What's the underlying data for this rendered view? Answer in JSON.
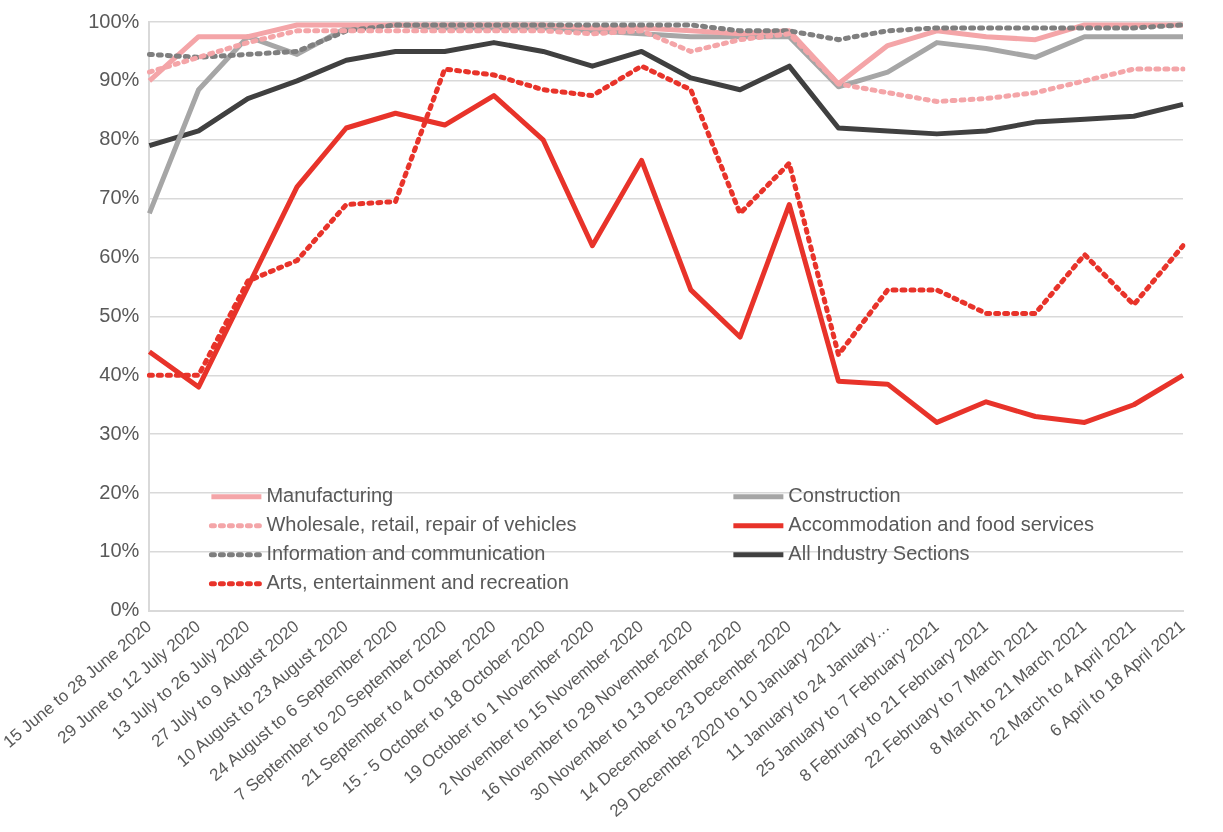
{
  "chart_data": {
    "type": "line",
    "categories": [
      "15 June to 28 June 2020",
      "29 June to 12 July 2020",
      "13 July to 26 July 2020",
      "27 July to 9 August 2020",
      "10 August to 23 August 2020",
      "24 August to 6 September 2020",
      "7 September to 20 September 2020",
      "21 September to 4 October 2020",
      "15 - 5 October to 18 October 2020",
      "19 October to 1 November 2020",
      "2 November to 15 November 2020",
      "16 November to 29 November 2020",
      "30 November to 13 December 2020",
      "14 December to 23 December 2020",
      "29 December 2020 to 10 January 2021",
      "11 January to 24 January…",
      "25 January to 7 February 2021",
      "8 February to 21 February 2021",
      "22 February to 7 March 2021",
      "8 March to 21 March 2021",
      "22 March to 4 April 2021",
      "6 April to 18 April 2021"
    ],
    "series": [
      {
        "name": "Manufacturing",
        "color": "#f4a5a8",
        "line_style": "solid",
        "values": [
          90,
          97.5,
          97.5,
          99.5,
          99.5,
          99.5,
          99.5,
          99.5,
          99.5,
          99,
          99,
          98.5,
          98,
          98.5,
          89.5,
          96,
          98.5,
          97.5,
          97,
          99.5,
          99.5,
          99.5
        ]
      },
      {
        "name": "Construction",
        "color": "#a6a6a6",
        "line_style": "solid",
        "values": [
          67.5,
          88.5,
          97.5,
          94.5,
          99,
          99.5,
          99,
          99,
          99,
          98.5,
          98,
          97.5,
          97.5,
          97.5,
          89,
          91.5,
          96.5,
          95.5,
          94,
          97.5,
          97.5,
          97.5
        ]
      },
      {
        "name": "Wholesale, retail, repair of vehicles",
        "color": "#f4a5a8",
        "line_style": "dotted",
        "values": [
          91.5,
          94,
          96.5,
          98.5,
          98.5,
          98.5,
          98.5,
          98.5,
          98.5,
          98,
          98.5,
          95,
          97,
          98,
          89.5,
          88,
          86.5,
          87,
          88,
          90,
          92,
          92
        ]
      },
      {
        "name": "Accommodation and food services",
        "color": "#e8332a",
        "line_style": "solid",
        "values": [
          44,
          38,
          55,
          72,
          82,
          84.5,
          82.5,
          87.5,
          80,
          62,
          76.5,
          54.5,
          46.5,
          69,
          39,
          38.5,
          32,
          35.5,
          33,
          32,
          35,
          40
        ]
      },
      {
        "name": "Information and communication",
        "color": "#7f7f7f",
        "line_style": "dotted",
        "values": [
          94.5,
          94,
          94.5,
          95,
          98.5,
          99.5,
          99.5,
          99.5,
          99.5,
          99.5,
          99.5,
          99.5,
          98.5,
          98.5,
          97,
          98.5,
          99,
          99,
          99,
          99,
          99,
          99.5
        ]
      },
      {
        "name": "All Industry Sections",
        "color": "#404040",
        "line_style": "solid",
        "values": [
          79,
          81.5,
          87,
          90,
          93.5,
          95,
          95,
          96.5,
          95,
          92.5,
          95,
          90.5,
          88.5,
          92.5,
          82,
          81.5,
          81,
          81.5,
          83,
          83.5,
          84,
          86
        ]
      },
      {
        "name": "Arts, entertainment and recreation",
        "color": "#e8332a",
        "line_style": "dotted",
        "values": [
          40,
          40,
          56,
          59.5,
          69,
          69.5,
          92,
          91,
          88.5,
          87.5,
          92.5,
          88.5,
          67.5,
          76,
          43.5,
          54.5,
          54.5,
          50.5,
          50.5,
          60.5,
          52,
          62
        ]
      }
    ],
    "ylim": [
      0,
      100
    ],
    "yticks": [
      {
        "value": 0,
        "label": "0%"
      },
      {
        "value": 10,
        "label": "10%"
      },
      {
        "value": 20,
        "label": "20%"
      },
      {
        "value": 30,
        "label": "30%"
      },
      {
        "value": 40,
        "label": "40%"
      },
      {
        "value": 50,
        "label": "50%"
      },
      {
        "value": 60,
        "label": "60%"
      },
      {
        "value": 70,
        "label": "70%"
      },
      {
        "value": 80,
        "label": "80%"
      },
      {
        "value": 90,
        "label": "90%"
      },
      {
        "value": 100,
        "label": "100%"
      }
    ],
    "grid": "y",
    "legend": "bottom left",
    "marker": "none"
  }
}
